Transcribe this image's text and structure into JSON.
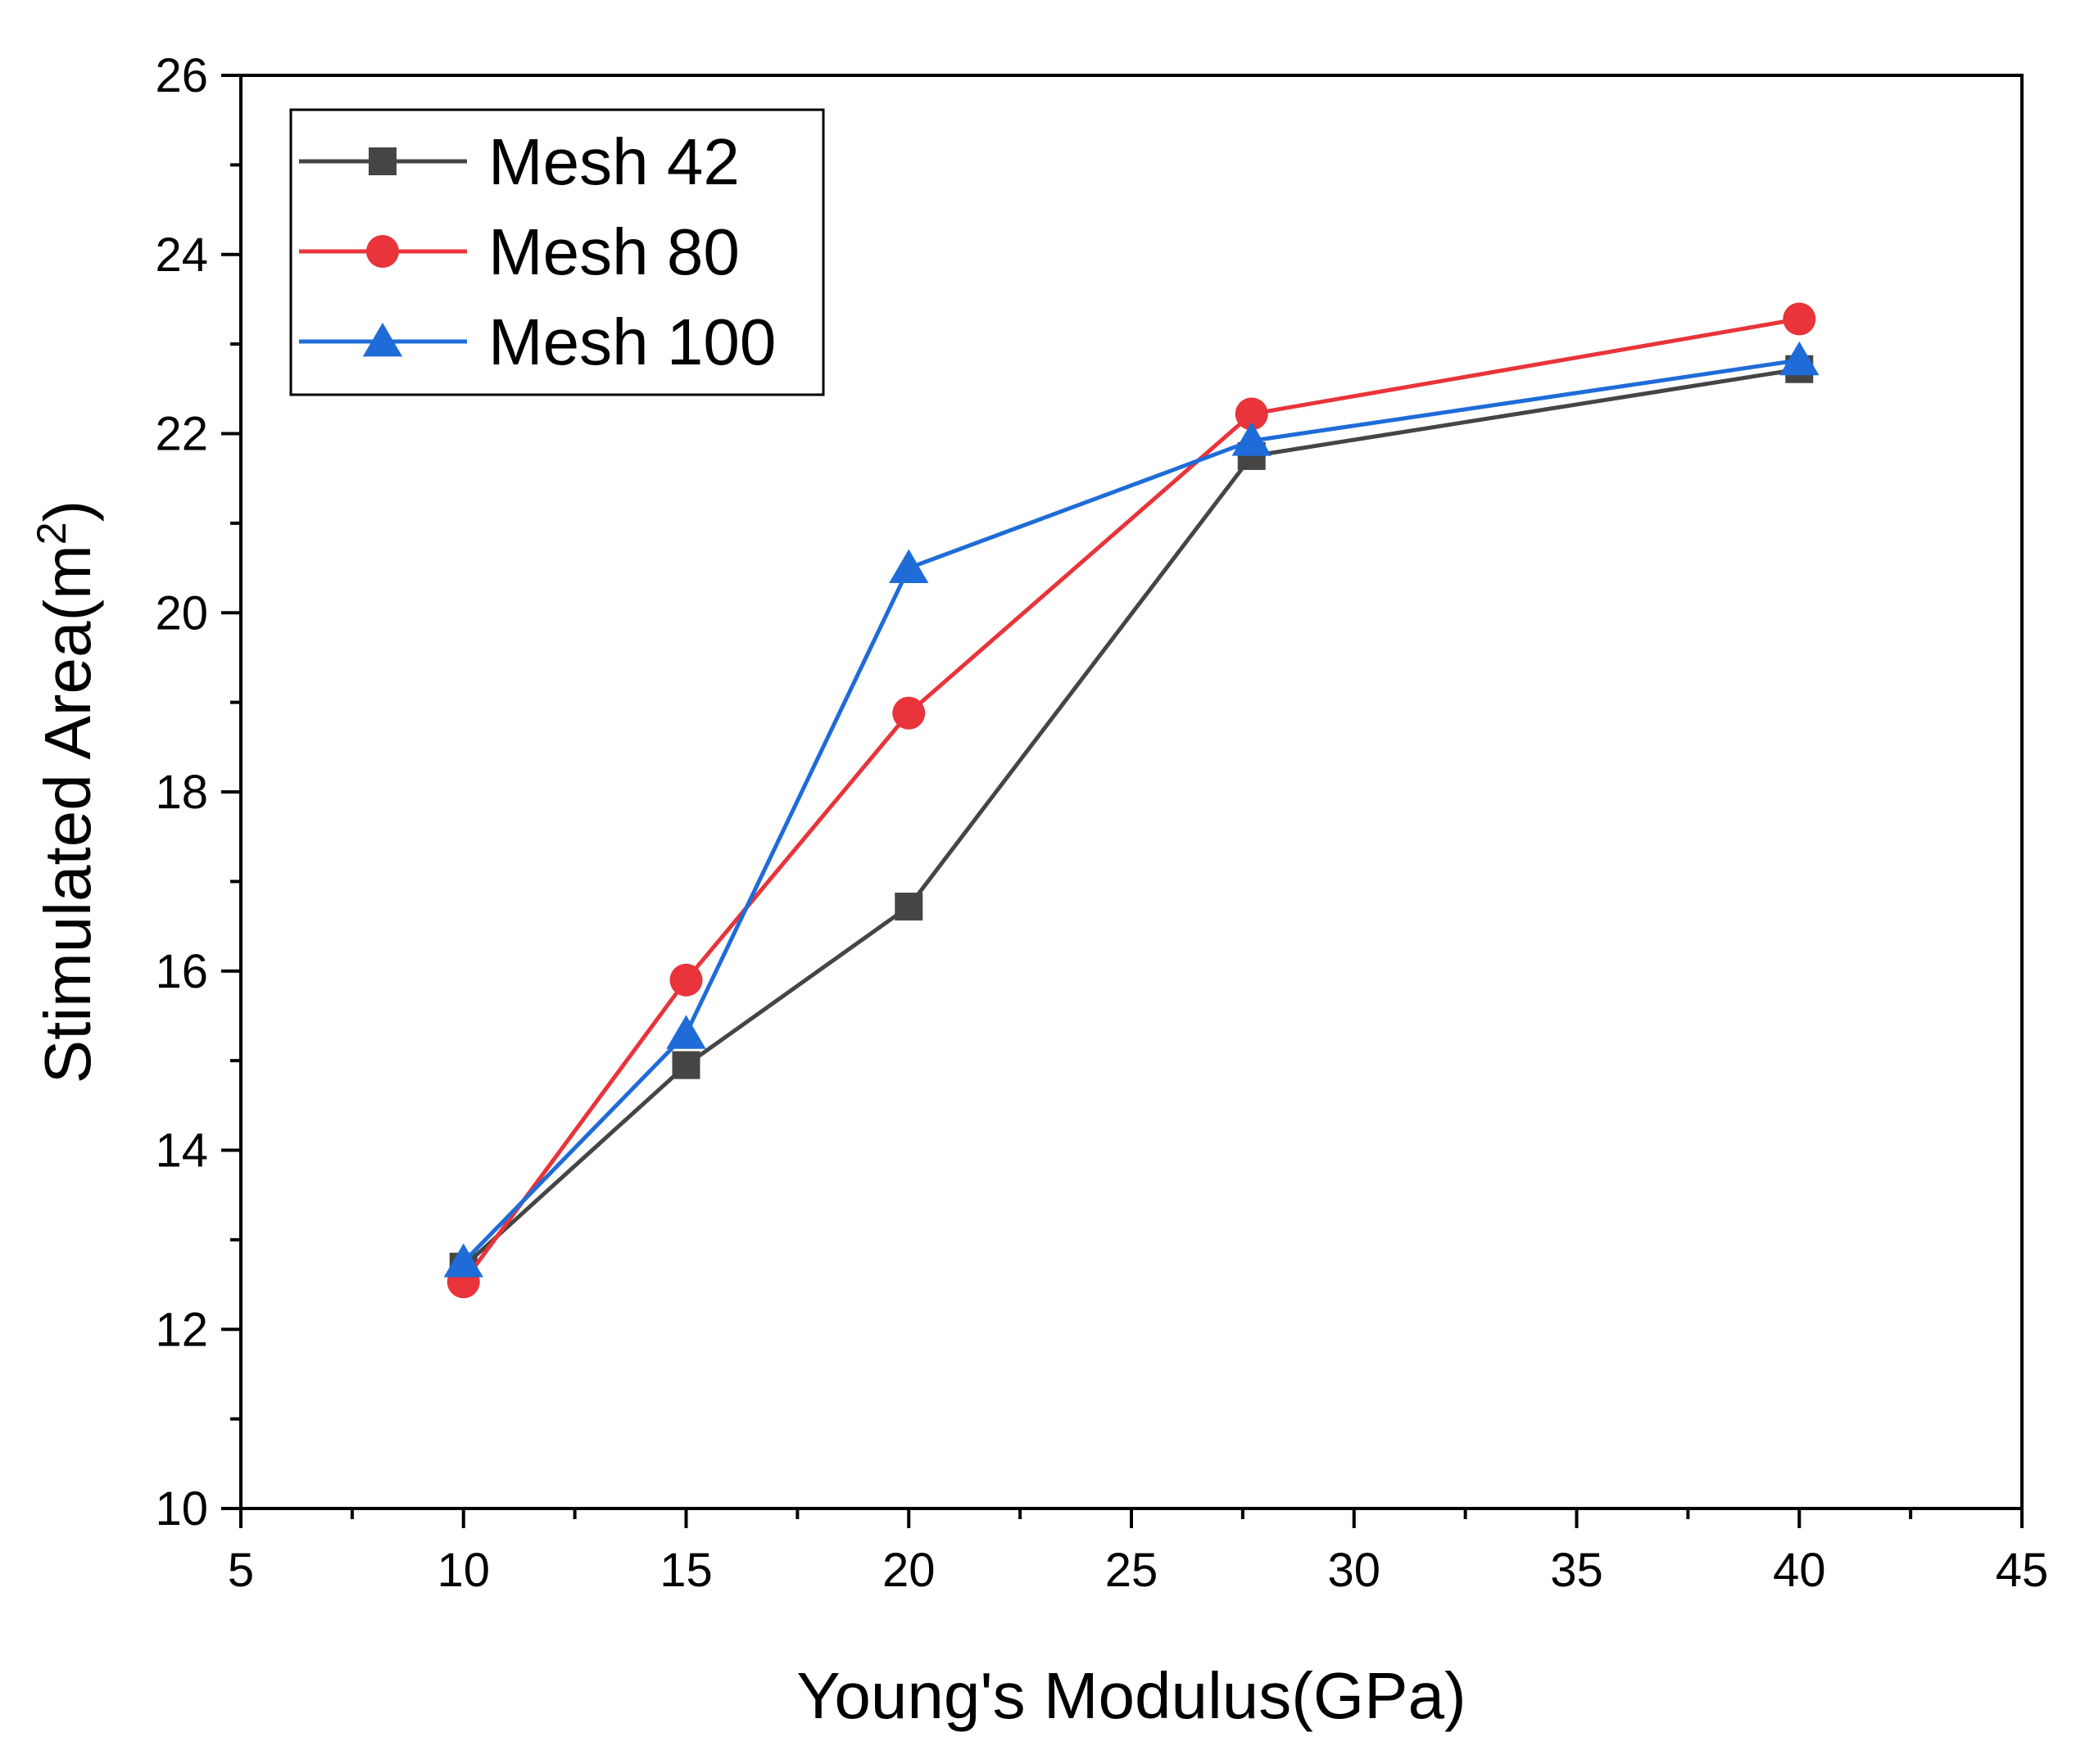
{
  "chart_data": {
    "type": "line",
    "xlabel": "Young's Modulus(GPa)",
    "ylabel_main": "Stimulated Area(m",
    "ylabel_sup": "2",
    "ylabel_close": ")",
    "xlim": [
      5,
      45
    ],
    "ylim": [
      10,
      26
    ],
    "xticks": [
      5,
      10,
      15,
      20,
      25,
      30,
      35,
      40,
      45
    ],
    "yticks": [
      10,
      12,
      14,
      16,
      18,
      20,
      22,
      24,
      26
    ],
    "grid": false,
    "legend_position": "top-left",
    "series": [
      {
        "name": "Mesh 42",
        "marker": "square",
        "color": "#454545",
        "x": [
          10,
          15,
          20,
          27.7,
          40
        ],
        "y": [
          12.7,
          14.95,
          16.72,
          21.75,
          22.72
        ]
      },
      {
        "name": "Mesh 80",
        "marker": "circle",
        "color": "#e8343a",
        "x": [
          10,
          15,
          20,
          27.7,
          40
        ],
        "y": [
          12.53,
          15.9,
          18.88,
          22.22,
          23.28
        ]
      },
      {
        "name": "Mesh 100",
        "marker": "triangle",
        "color": "#1f6cd8",
        "x": [
          10,
          15,
          20,
          27.7,
          40
        ],
        "y": [
          12.75,
          15.3,
          20.5,
          21.92,
          22.82
        ]
      }
    ]
  }
}
